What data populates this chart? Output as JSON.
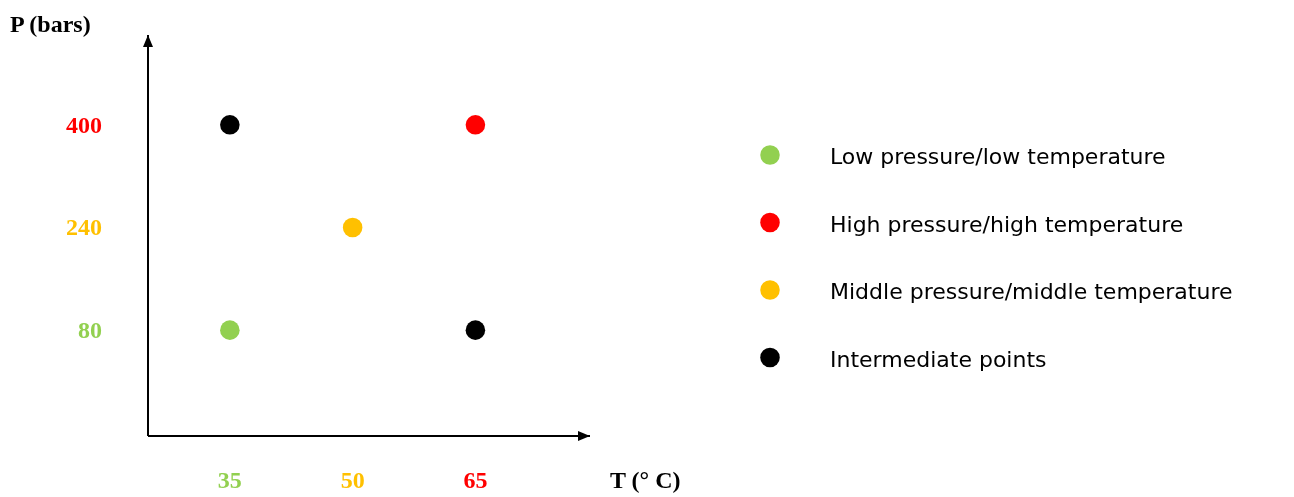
{
  "chart_data": {
    "type": "scatter",
    "xlabel": "T (° C)",
    "ylabel": "P (bars)",
    "xlim": [
      25,
      79
    ],
    "ylim": [
      -85,
      540
    ],
    "xticks": [
      35,
      50,
      65
    ],
    "yticks": [
      80,
      240,
      400
    ],
    "marker": "circle",
    "legend": "right",
    "grid": false,
    "series": [
      {
        "name": "Low pressure/low temperature",
        "color": "#92d050",
        "x": [
          35
        ],
        "values": [
          80
        ]
      },
      {
        "name": "High pressure/high temperature",
        "color": "#ff0000",
        "x": [
          65
        ],
        "values": [
          400
        ]
      },
      {
        "name": "Middle pressure/middle temperature",
        "color": "#ffc000",
        "x": [
          50
        ],
        "values": [
          240
        ]
      },
      {
        "name": "Intermediate points",
        "color": "#000000",
        "x": [
          35,
          65
        ],
        "values": [
          400,
          80
        ]
      }
    ]
  }
}
